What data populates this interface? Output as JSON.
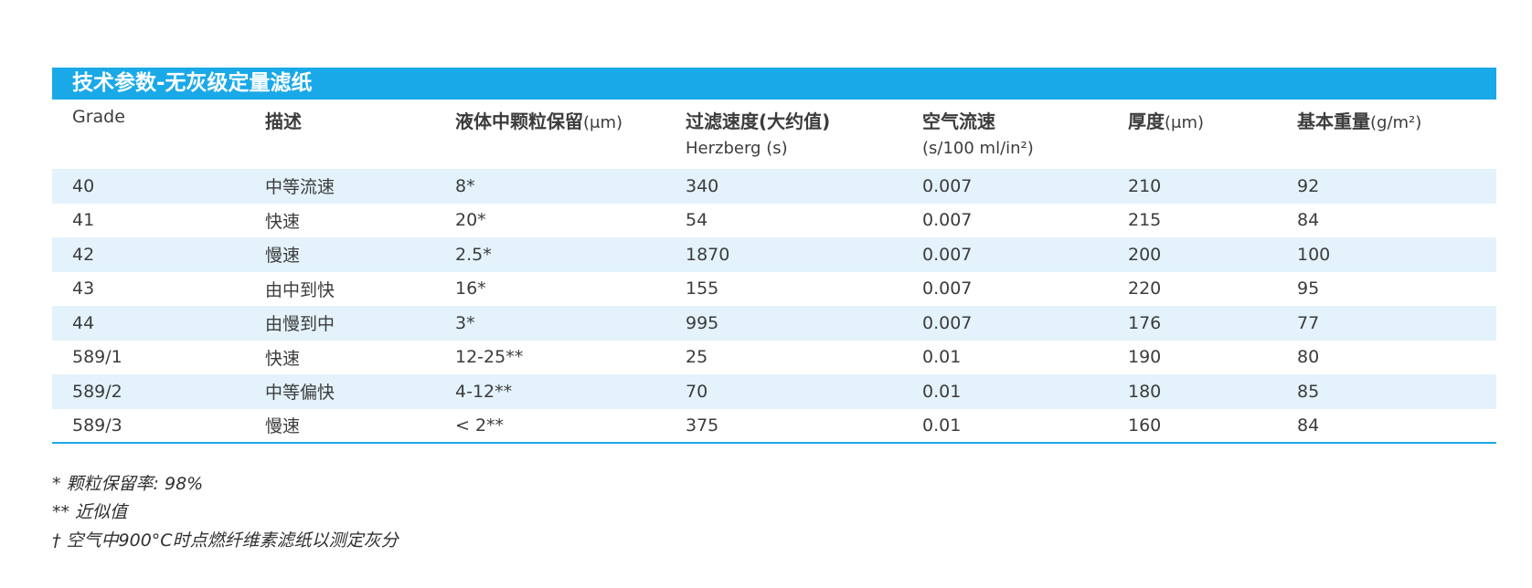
{
  "title": "技术参数-无灰级定量滤纸",
  "headers": [
    {
      "main": "Grade",
      "unit": "",
      "sub": ""
    },
    {
      "main": "描述",
      "unit": "",
      "sub": ""
    },
    {
      "main": "液体中颗粒保留",
      "unit": "(μm)",
      "sub": ""
    },
    {
      "main": "过滤速度(大约值)",
      "unit": "",
      "sub": "Herzberg (s)"
    },
    {
      "main": "空气流速",
      "unit": "",
      "sub": "(s/100 ml/in²)"
    },
    {
      "main": "厚度",
      "unit": "(μm)",
      "sub": ""
    },
    {
      "main": "基本重量",
      "unit": "(g/m²)",
      "sub": ""
    }
  ],
  "rows": [
    [
      "40",
      "中等流速",
      "8*",
      "340",
      "0.007",
      "210",
      "92"
    ],
    [
      "41",
      "快速",
      "20*",
      "54",
      "0.007",
      "215",
      "84"
    ],
    [
      "42",
      "慢速",
      "2.5*",
      "1870",
      "0.007",
      "200",
      "100"
    ],
    [
      "43",
      "由中到快",
      "16*",
      "155",
      "0.007",
      "220",
      "95"
    ],
    [
      "44",
      "由慢到中",
      "3*",
      "995",
      "0.007",
      "176",
      "77"
    ],
    [
      "589/1",
      "快速",
      "12-25**",
      "25",
      "0.01",
      "190",
      "80"
    ],
    [
      "589/2",
      "中等偏快",
      "4-12**",
      "70",
      "0.01",
      "180",
      "85"
    ],
    [
      "589/3",
      "慢速",
      "< 2**",
      "375",
      "0.01",
      "160",
      "84"
    ]
  ],
  "notes": [
    "* 颗粒保留率: 98%",
    "** 近似值",
    "† 空气中900°C时点燃纤维素滤纸以测定灰分"
  ],
  "colors": {
    "accent": "#1aa9e8",
    "row_shade": "#e3f2fb"
  }
}
